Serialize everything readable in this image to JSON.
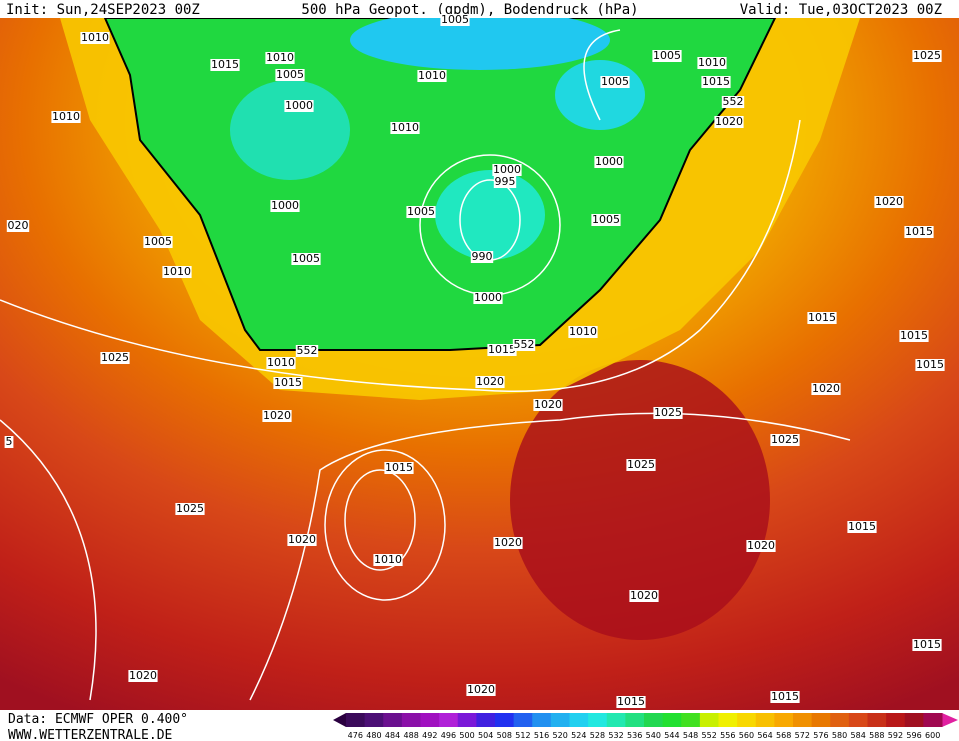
{
  "header": {
    "init": "Init: Sun,24SEP2023 00Z",
    "title": "500 hPa Geopot. (gpdm), Bodendruck (hPa)",
    "valid": "Valid: Tue,03OCT2023 00Z"
  },
  "footer": {
    "data": "Data: ECMWF OPER 0.400°",
    "site": "WWW.WETTERZENTRALE.DE"
  },
  "isobar_labels": [
    "1010",
    "1015",
    "1010",
    "1005",
    "1005",
    "1010",
    "1005",
    "1005",
    "1010",
    "1015",
    "552",
    "1020",
    "1025",
    "1010",
    "1000",
    "1010",
    "1000",
    "1000",
    "995",
    "1000",
    "1005",
    "1005",
    "1020",
    "1015",
    "020",
    "1005",
    "1010",
    "990",
    "1005",
    "1000",
    "1015",
    "1015",
    "1010",
    "552",
    "1015",
    "552",
    "1025",
    "1010",
    "1015",
    "1015",
    "1020",
    "1020",
    "1020",
    "1020",
    "1025",
    "1025",
    "5",
    "1025",
    "1015",
    "1025",
    "1015",
    "1020",
    "1020",
    "1020",
    "1010",
    "1020",
    "1015",
    "1020",
    "1020",
    "1015",
    "1015"
  ],
  "colorbar": {
    "values": [
      476,
      480,
      484,
      488,
      492,
      496,
      500,
      504,
      508,
      512,
      516,
      520,
      524,
      528,
      532,
      536,
      540,
      544,
      548,
      552,
      556,
      560,
      564,
      568,
      572,
      576,
      580,
      584,
      588,
      592,
      596,
      600
    ],
    "colors": [
      "#3a0a5a",
      "#4b0f75",
      "#6a108f",
      "#8a10a8",
      "#a010c0",
      "#b020d8",
      "#7a18d8",
      "#4020e0",
      "#2030f0",
      "#2060f0",
      "#2090f0",
      "#20b0f0",
      "#20d0f0",
      "#20e8e0",
      "#20e8b0",
      "#20e080",
      "#20d850",
      "#20e030",
      "#40e020",
      "#c8f000",
      "#f0f000",
      "#f8d800",
      "#f8c000",
      "#f8a800",
      "#f09000",
      "#e87800",
      "#e06010",
      "#d84818",
      "#c83018",
      "#b81818",
      "#a01020",
      "#a00850"
    ]
  }
}
